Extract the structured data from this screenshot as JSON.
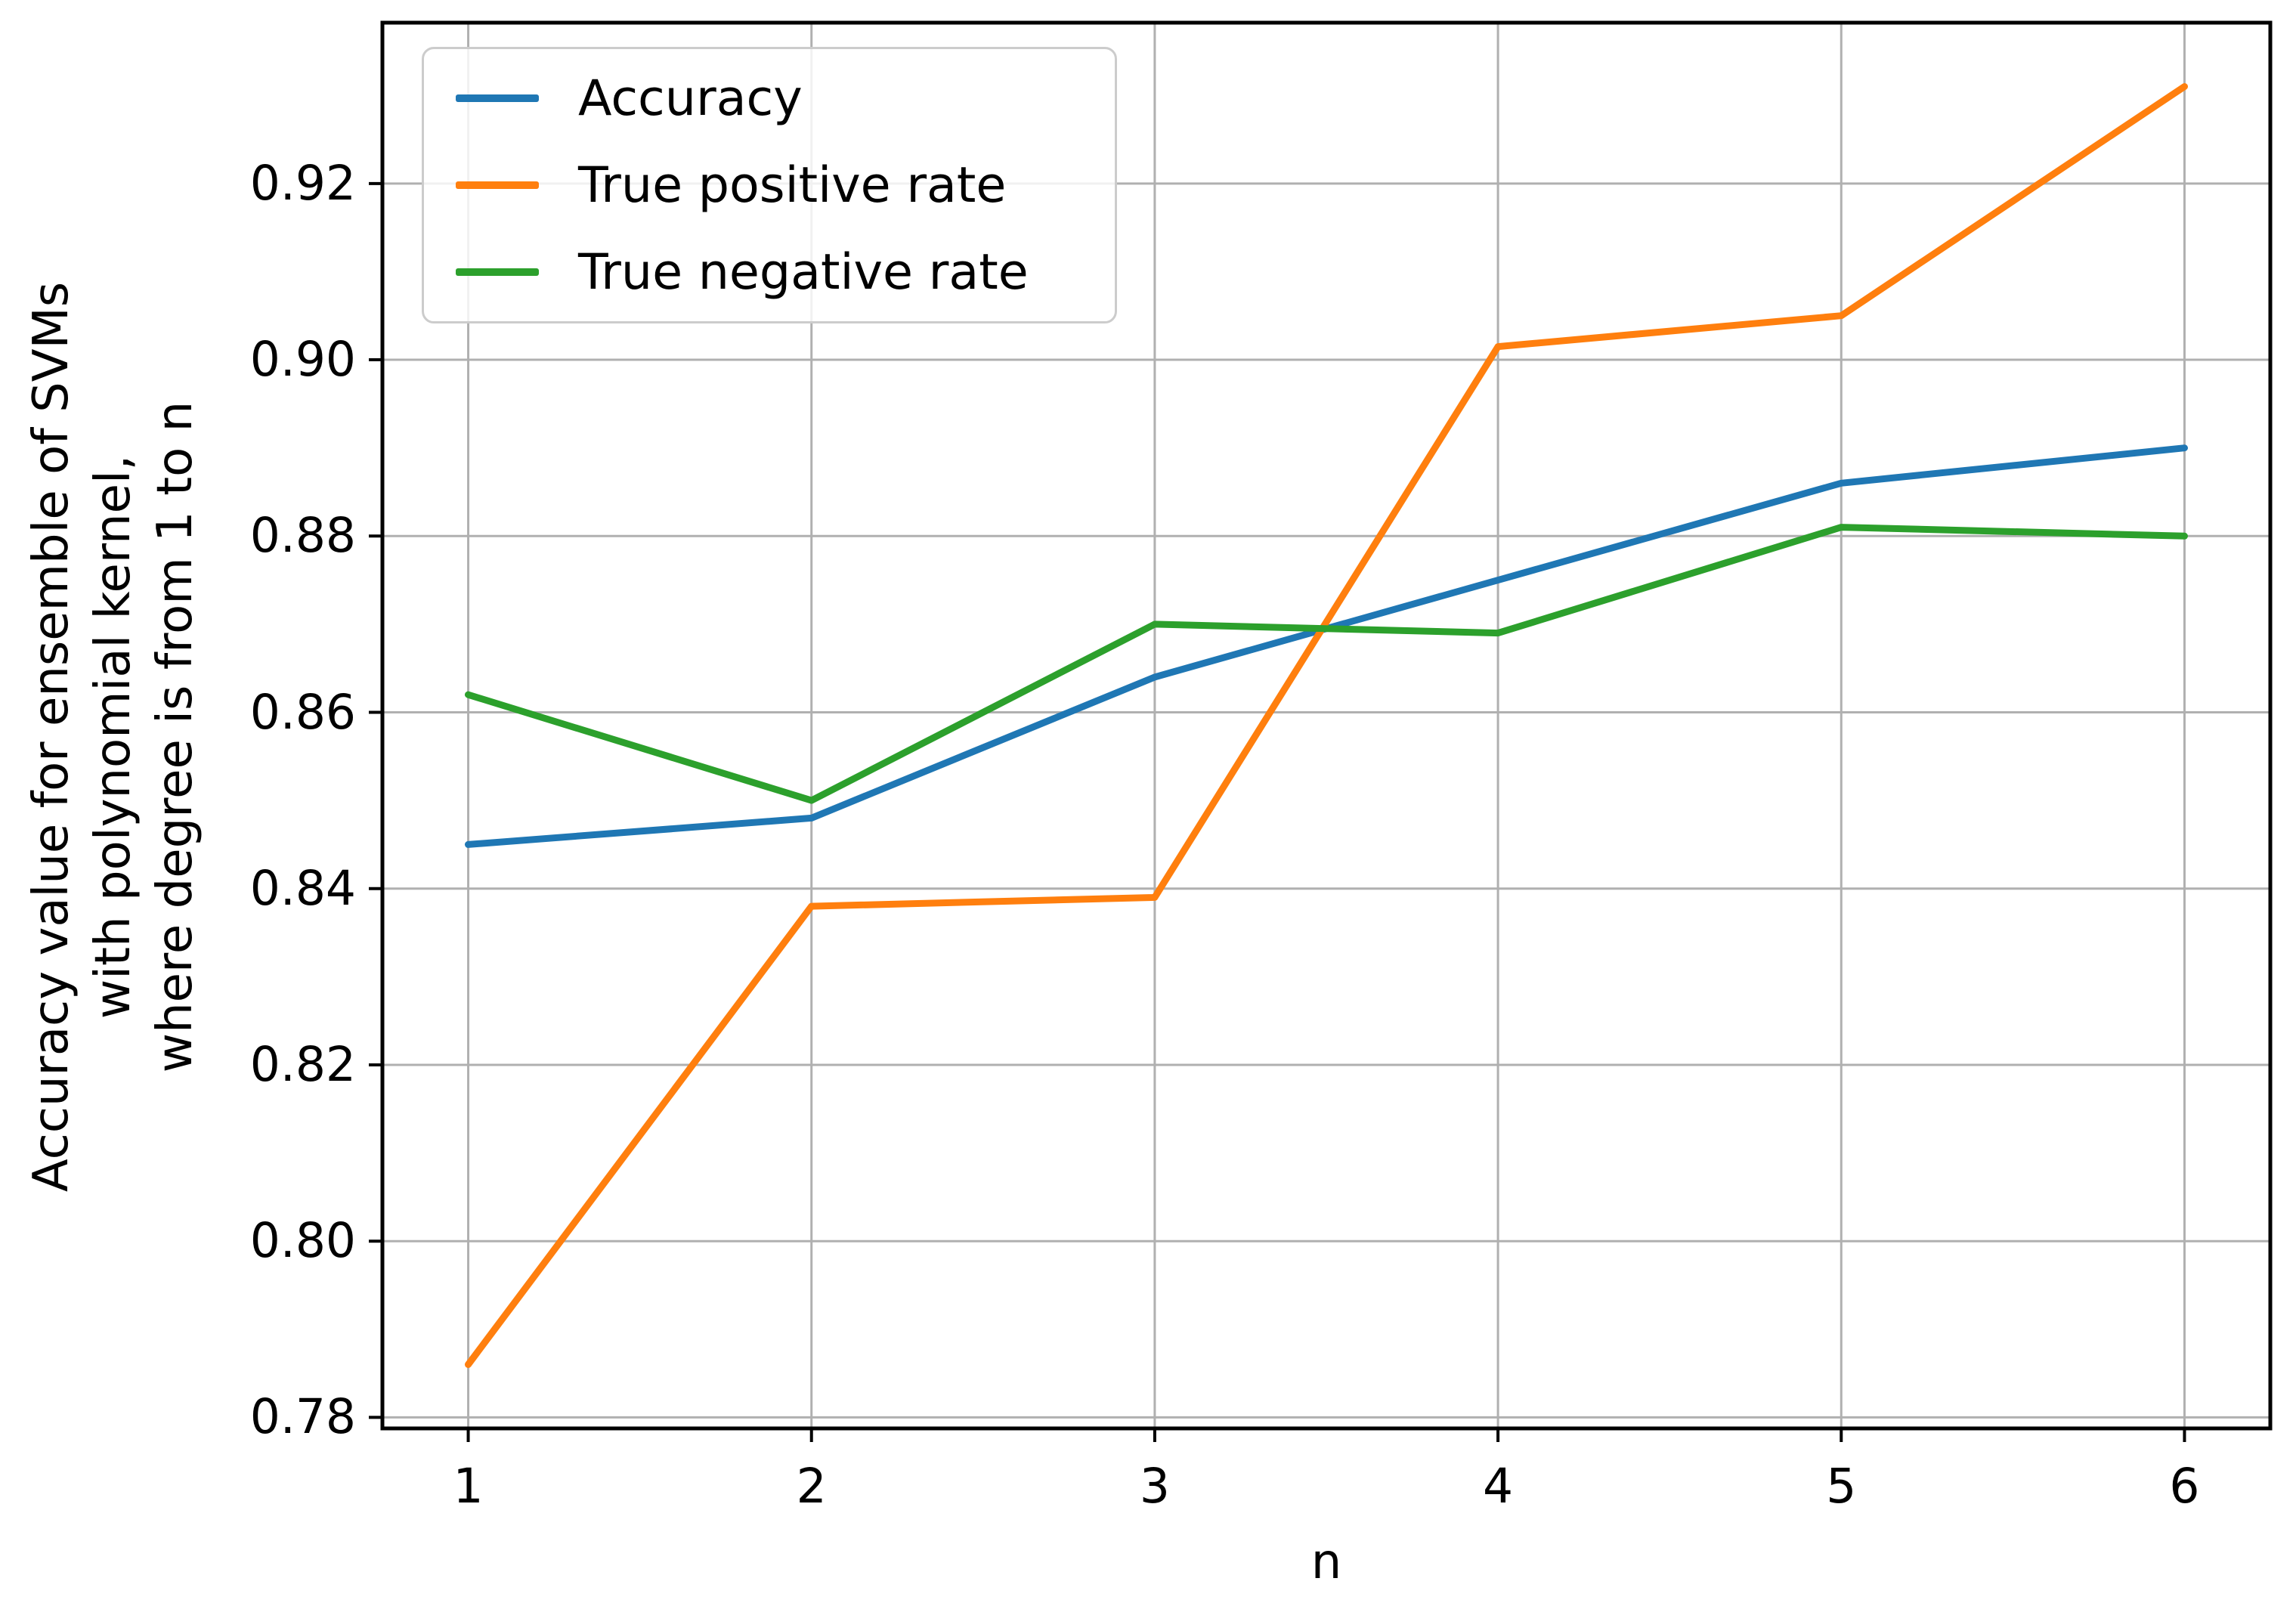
{
  "chart_data": {
    "type": "line",
    "title": "",
    "xlabel": "n",
    "ylabel_lines": [
      "Accuracy value for ensemble of SVMs",
      "with polynomial kernel,",
      "where degree is from 1 to n"
    ],
    "x": [
      1,
      2,
      3,
      4,
      5,
      6
    ],
    "series": [
      {
        "name": "Accuracy",
        "color": "#1f77b4",
        "values": [
          0.845,
          0.848,
          0.864,
          0.875,
          0.886,
          0.89
        ]
      },
      {
        "name": "True positive rate",
        "color": "#ff7f0e",
        "values": [
          0.786,
          0.838,
          0.839,
          0.9015,
          0.905,
          0.931
        ]
      },
      {
        "name": "True negative rate",
        "color": "#2ca02c",
        "values": [
          0.862,
          0.85,
          0.87,
          0.869,
          0.881,
          0.88
        ]
      }
    ],
    "xticks": [
      "1",
      "2",
      "3",
      "4",
      "5",
      "6"
    ],
    "yticks": [
      "0.78",
      "0.80",
      "0.82",
      "0.84",
      "0.86",
      "0.88",
      "0.90",
      "0.92"
    ],
    "xlim": [
      0.75,
      6.25
    ],
    "ylim": [
      0.77875,
      0.93825
    ],
    "grid": true,
    "legend_position": "upper left",
    "colors": {
      "grid": "#b0b0b0",
      "spine": "#000000",
      "tick": "#000000",
      "text": "#000000",
      "legend_border": "#cccccc"
    }
  }
}
